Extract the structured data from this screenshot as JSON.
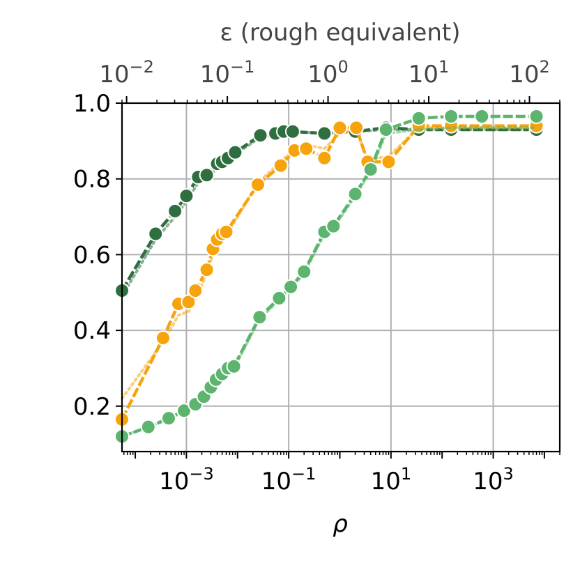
{
  "chart_data": {
    "type": "line",
    "title": "",
    "xlabel": "ρ",
    "top_xlabel": "ε (rough equivalent)",
    "ylabel": "",
    "x_scale": "log",
    "xlim": [
      5.5e-05,
      20000
    ],
    "ylim": [
      0.08,
      1.0
    ],
    "top_xlim": [
      0.009,
      200
    ],
    "x_ticks": [
      {
        "value": 0.001,
        "base": "10",
        "exp": "−3"
      },
      {
        "value": 0.1,
        "base": "10",
        "exp": "−1"
      },
      {
        "value": 10,
        "base": "10",
        "exp": "1"
      },
      {
        "value": 1000,
        "base": "10",
        "exp": "3"
      }
    ],
    "top_ticks": [
      {
        "value": 0.01,
        "base": "10",
        "exp": "−2"
      },
      {
        "value": 0.1,
        "base": "10",
        "exp": "−1"
      },
      {
        "value": 1,
        "base": "10",
        "exp": "0"
      },
      {
        "value": 10,
        "base": "10",
        "exp": "1"
      },
      {
        "value": 100,
        "base": "10",
        "exp": "2"
      }
    ],
    "y_ticks": [
      "0.2",
      "0.4",
      "0.6",
      "0.8",
      "1.0"
    ],
    "grid": true,
    "colors": {
      "dark_green": "#2f6e3f",
      "orange": "#f7a30c",
      "light_green": "#5cb46e"
    },
    "series": [
      {
        "color": "#2f6e3f",
        "x": [
          5.5e-05,
          0.00025,
          0.0006,
          0.001,
          0.0017,
          0.0025,
          0.004,
          0.005,
          0.0065,
          0.009,
          0.028,
          0.055,
          0.08,
          0.12,
          0.5,
          2.0,
          8.0,
          35,
          150,
          7000
        ],
        "y": [
          0.505,
          0.655,
          0.715,
          0.755,
          0.805,
          0.81,
          0.84,
          0.845,
          0.855,
          0.87,
          0.915,
          0.92,
          0.925,
          0.925,
          0.92,
          0.925,
          0.935,
          0.93,
          0.93,
          0.93
        ],
        "dotted_y": [
          0.49,
          0.64,
          0.7,
          0.74,
          0.79,
          0.8,
          0.83,
          0.84,
          0.85,
          0.865,
          0.91,
          0.915,
          0.92,
          0.925,
          0.92,
          0.925,
          0.93,
          0.93,
          0.93,
          0.93
        ]
      },
      {
        "color": "#f7a30c",
        "x": [
          5.5e-05,
          0.00035,
          0.0007,
          0.0011,
          0.0015,
          0.0025,
          0.0033,
          0.004,
          0.005,
          0.006,
          0.025,
          0.07,
          0.13,
          0.22,
          0.5,
          1.0,
          2.1,
          3.5,
          9.0,
          35,
          150,
          7000
        ],
        "y": [
          0.165,
          0.38,
          0.47,
          0.475,
          0.505,
          0.56,
          0.615,
          0.64,
          0.655,
          0.66,
          0.785,
          0.835,
          0.875,
          0.88,
          0.855,
          0.935,
          0.935,
          0.845,
          0.845,
          0.94,
          0.94,
          0.94
        ],
        "dotted_y": [
          0.22,
          0.37,
          0.44,
          0.45,
          0.48,
          0.55,
          0.6,
          0.63,
          0.64,
          0.65,
          0.79,
          0.845,
          0.88,
          0.89,
          0.88,
          0.92,
          0.93,
          0.85,
          0.86,
          0.935,
          0.935,
          0.935
        ]
      },
      {
        "color": "#5cb46e",
        "x": [
          5.5e-05,
          0.00018,
          0.00045,
          0.0009,
          0.0015,
          0.0022,
          0.003,
          0.0038,
          0.005,
          0.0065,
          0.0085,
          0.027,
          0.065,
          0.11,
          0.2,
          0.5,
          0.75,
          2.0,
          4.0,
          8.0,
          35,
          150,
          600,
          7000
        ],
        "y": [
          0.12,
          0.145,
          0.168,
          0.188,
          0.205,
          0.225,
          0.25,
          0.27,
          0.285,
          0.3,
          0.305,
          0.435,
          0.485,
          0.515,
          0.555,
          0.66,
          0.675,
          0.76,
          0.825,
          0.93,
          0.96,
          0.965,
          0.965,
          0.965
        ],
        "dotted_y": [
          0.12,
          0.145,
          0.165,
          0.185,
          0.2,
          0.22,
          0.245,
          0.265,
          0.28,
          0.295,
          0.3,
          0.43,
          0.48,
          0.51,
          0.55,
          0.655,
          0.67,
          0.755,
          0.82,
          0.92,
          0.93,
          0.935,
          0.935,
          0.935
        ]
      }
    ]
  }
}
